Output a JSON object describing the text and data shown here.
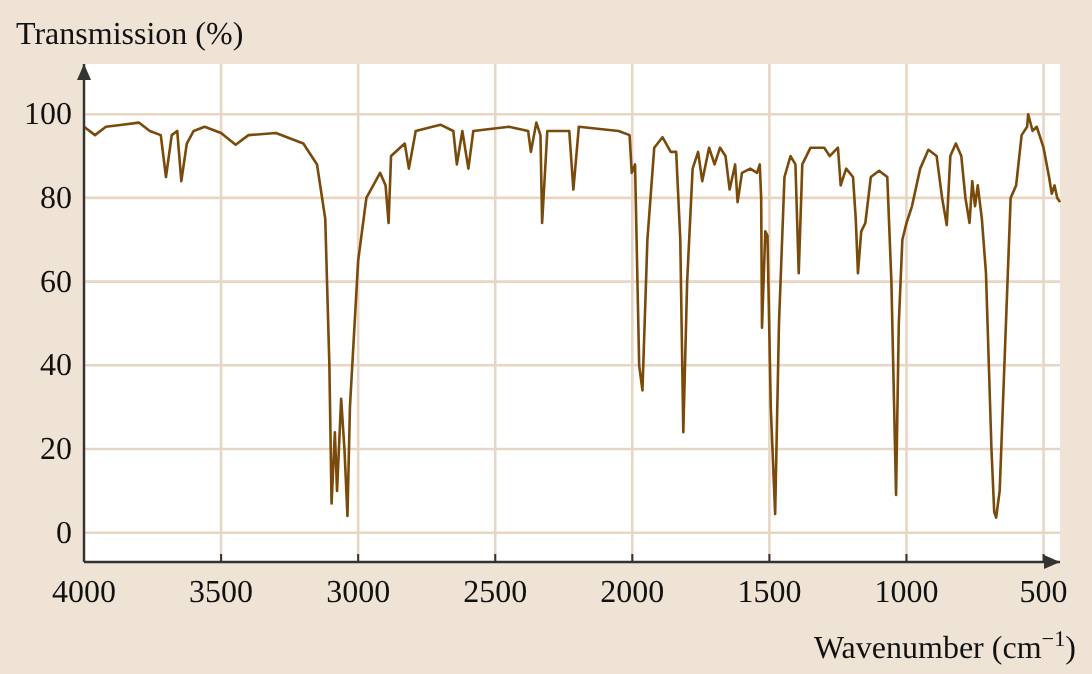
{
  "chart_data": {
    "type": "line",
    "ylabel": "Transmission (%)",
    "xlabel": "Wavenumber (cm$^{−1}$)",
    "xlim": [
      4000,
      440
    ],
    "ylim": [
      -7,
      112
    ],
    "xticks": [
      4000,
      3500,
      3000,
      2500,
      2000,
      1500,
      1000,
      500
    ],
    "yticks": [
      0,
      20,
      40,
      60,
      80,
      100
    ],
    "grid": true,
    "marker": "none",
    "line_style": "solid",
    "series": [
      {
        "color": "#7a4a0a",
        "x": [
          4000,
          3960,
          3920,
          3860,
          3800,
          3760,
          3720,
          3701,
          3680,
          3660,
          3645,
          3625,
          3600,
          3560,
          3500,
          3447,
          3400,
          3300,
          3200,
          3150,
          3120,
          3105,
          3097,
          3085,
          3077,
          3062,
          3050,
          3039,
          3030,
          3000,
          2970,
          2920,
          2900,
          2889,
          2880,
          2830,
          2815,
          2790,
          2700,
          2653,
          2640,
          2620,
          2598,
          2580,
          2450,
          2380,
          2370,
          2350,
          2335,
          2329,
          2310,
          2230,
          2215,
          2195,
          2050,
          2010,
          2002,
          1990,
          1975,
          1963,
          1945,
          1920,
          1890,
          1860,
          1840,
          1825,
          1814,
          1800,
          1780,
          1760,
          1745,
          1720,
          1700,
          1680,
          1660,
          1645,
          1625,
          1616,
          1600,
          1570,
          1545,
          1535,
          1530,
          1527,
          1515,
          1507,
          1495,
          1479,
          1465,
          1445,
          1423,
          1405,
          1393,
          1380,
          1350,
          1300,
          1280,
          1250,
          1240,
          1220,
          1195,
          1185,
          1177,
          1165,
          1150,
          1130,
          1100,
          1070,
          1055,
          1045,
          1038,
          1028,
          1015,
          1000,
          980,
          950,
          920,
          890,
          870,
          853,
          840,
          820,
          800,
          785,
          770,
          760,
          750,
          740,
          725,
          710,
          690,
          680,
          673,
          660,
          640,
          620,
          600,
          580,
          560,
          556,
          540,
          525,
          500,
          480,
          470,
          460,
          450,
          440
        ],
        "values": [
          97,
          95,
          97,
          97.5,
          98,
          96,
          95,
          85,
          95,
          96,
          84,
          93,
          96,
          97,
          95.5,
          92.7,
          95,
          95.5,
          93,
          88,
          75,
          40,
          7,
          24,
          10,
          32,
          20,
          4,
          30,
          65,
          80,
          86,
          83,
          74,
          90,
          93,
          87,
          96,
          97.5,
          96,
          88,
          96,
          87,
          96,
          97,
          96,
          91,
          98,
          95,
          74,
          96,
          96,
          82,
          97,
          96,
          95,
          86,
          88,
          40,
          34,
          70,
          92,
          94.5,
          91,
          91,
          70,
          24,
          60,
          87,
          91,
          84,
          92,
          88,
          92,
          90,
          82,
          88,
          79,
          86,
          87,
          86,
          88,
          80,
          49,
          72,
          71,
          30,
          4.5,
          50,
          85,
          90,
          88,
          62,
          88,
          92,
          92,
          90,
          92,
          83,
          87,
          85,
          75,
          62,
          72,
          74,
          85,
          86.5,
          85,
          60,
          30,
          9,
          50,
          70,
          74,
          78,
          87,
          91.5,
          90,
          80,
          73.5,
          90,
          93,
          90,
          80,
          74,
          84,
          78,
          83,
          75,
          62,
          20,
          5,
          3.6,
          10,
          45,
          80,
          83,
          95,
          97,
          100,
          96,
          97,
          92,
          85,
          81,
          83,
          80,
          79
        ]
      }
    ]
  }
}
